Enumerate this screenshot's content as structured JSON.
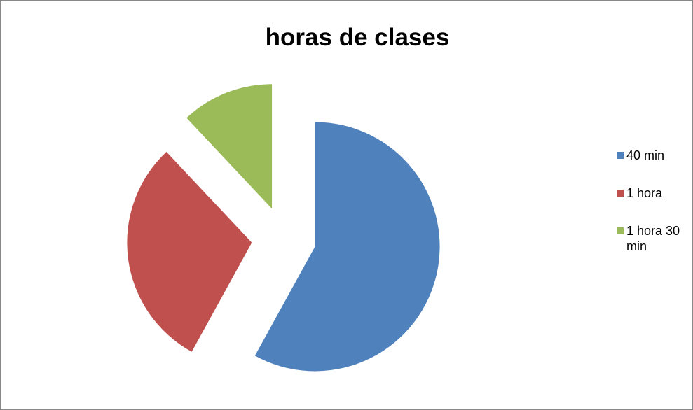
{
  "chart_data": {
    "type": "pie",
    "title": "horas de clases",
    "categories": [
      "40 min",
      "1 hora",
      "1 hora 30 min"
    ],
    "values": [
      58,
      30,
      12
    ],
    "colors": [
      "#4f81bd",
      "#c0504d",
      "#9bbb59"
    ],
    "exploded": true,
    "legend": "right"
  }
}
